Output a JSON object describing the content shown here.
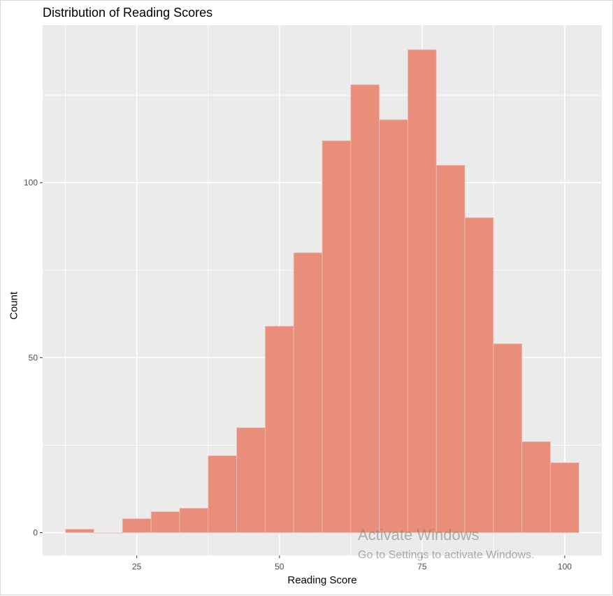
{
  "chart_data": {
    "type": "bar",
    "subtype": "histogram",
    "title": "Distribution of Reading Scores",
    "xlabel": "Reading Score",
    "ylabel": "Count",
    "xlim": [
      8.5,
      106.5
    ],
    "ylim": [
      -6.5,
      145
    ],
    "x_ticks": [
      25,
      50,
      75,
      100
    ],
    "y_ticks": [
      0,
      50,
      100
    ],
    "bin_width": 5,
    "bins": [
      {
        "x0": 12.5,
        "x1": 17.5,
        "count": 1
      },
      {
        "x0": 17.5,
        "x1": 22.5,
        "count": 0
      },
      {
        "x0": 22.5,
        "x1": 27.5,
        "count": 4
      },
      {
        "x0": 27.5,
        "x1": 32.5,
        "count": 6
      },
      {
        "x0": 32.5,
        "x1": 37.5,
        "count": 7
      },
      {
        "x0": 37.5,
        "x1": 42.5,
        "count": 22
      },
      {
        "x0": 42.5,
        "x1": 47.5,
        "count": 30
      },
      {
        "x0": 47.5,
        "x1": 52.5,
        "count": 59
      },
      {
        "x0": 52.5,
        "x1": 57.5,
        "count": 80
      },
      {
        "x0": 57.5,
        "x1": 62.5,
        "count": 112
      },
      {
        "x0": 62.5,
        "x1": 67.5,
        "count": 128
      },
      {
        "x0": 67.5,
        "x1": 72.5,
        "count": 118
      },
      {
        "x0": 72.5,
        "x1": 77.5,
        "count": 138
      },
      {
        "x0": 77.5,
        "x1": 82.5,
        "count": 105
      },
      {
        "x0": 82.5,
        "x1": 87.5,
        "count": 90
      },
      {
        "x0": 87.5,
        "x1": 92.5,
        "count": 54
      },
      {
        "x0": 92.5,
        "x1": 97.5,
        "count": 26
      },
      {
        "x0": 97.5,
        "x1": 102.5,
        "count": 20
      }
    ],
    "grid": true,
    "colors": {
      "panel_background": "#ebebeb",
      "grid_major": "#ffffff",
      "bar_fill": "#e88e7a",
      "bar_outline": "#f2c4ba",
      "tick_label": "#4d4d4d",
      "tick_mark": "#333333"
    }
  },
  "watermark": {
    "title": "Activate Windows",
    "subtitle": "Go to Settings to activate Windows."
  }
}
